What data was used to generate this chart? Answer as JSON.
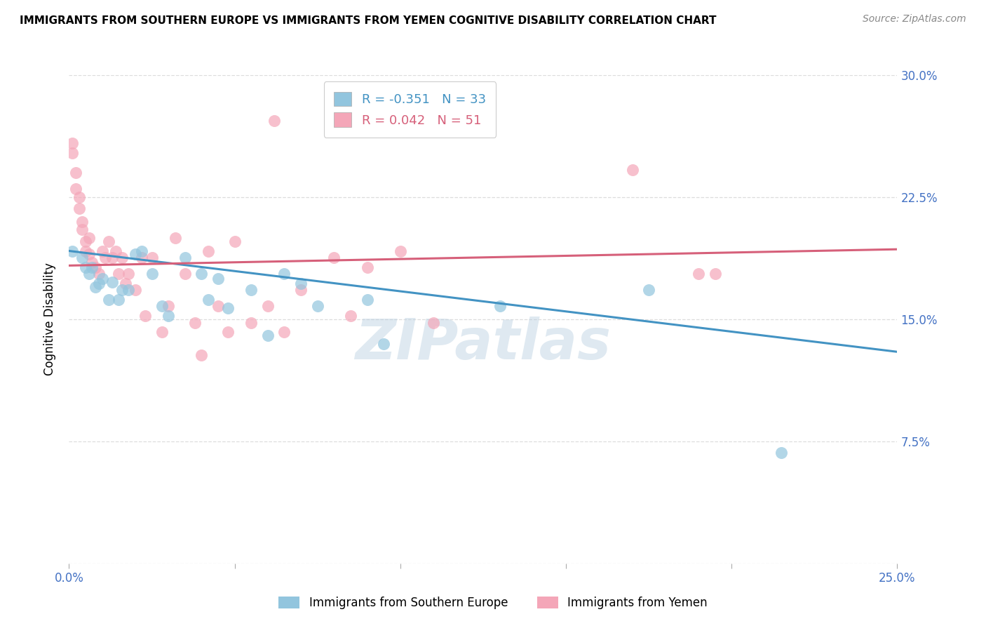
{
  "title": "IMMIGRANTS FROM SOUTHERN EUROPE VS IMMIGRANTS FROM YEMEN COGNITIVE DISABILITY CORRELATION CHART",
  "source": "Source: ZipAtlas.com",
  "ylabel": "Cognitive Disability",
  "xlim": [
    0.0,
    0.25
  ],
  "ylim": [
    0.0,
    0.3
  ],
  "xticks": [
    0.0,
    0.05,
    0.1,
    0.15,
    0.2,
    0.25
  ],
  "yticks": [
    0.0,
    0.075,
    0.15,
    0.225,
    0.3
  ],
  "xtick_labels": [
    "0.0%",
    "",
    "",
    "",
    "",
    "25.0%"
  ],
  "ytick_labels": [
    "",
    "7.5%",
    "15.0%",
    "22.5%",
    "30.0%"
  ],
  "legend1_label": "Immigrants from Southern Europe",
  "legend2_label": "Immigrants from Yemen",
  "R1": "-0.351",
  "N1": "33",
  "R2": "0.042",
  "N2": "51",
  "color_blue": "#92c5de",
  "color_pink": "#f4a6b8",
  "trendline_blue": "#4393c3",
  "trendline_pink": "#d6607a",
  "watermark": "ZIPatlas",
  "blue_points": [
    [
      0.001,
      0.192
    ],
    [
      0.004,
      0.188
    ],
    [
      0.005,
      0.182
    ],
    [
      0.006,
      0.178
    ],
    [
      0.007,
      0.182
    ],
    [
      0.008,
      0.17
    ],
    [
      0.009,
      0.172
    ],
    [
      0.01,
      0.175
    ],
    [
      0.012,
      0.162
    ],
    [
      0.013,
      0.173
    ],
    [
      0.015,
      0.162
    ],
    [
      0.016,
      0.168
    ],
    [
      0.018,
      0.168
    ],
    [
      0.02,
      0.19
    ],
    [
      0.022,
      0.192
    ],
    [
      0.025,
      0.178
    ],
    [
      0.028,
      0.158
    ],
    [
      0.03,
      0.152
    ],
    [
      0.035,
      0.188
    ],
    [
      0.04,
      0.178
    ],
    [
      0.042,
      0.162
    ],
    [
      0.045,
      0.175
    ],
    [
      0.048,
      0.157
    ],
    [
      0.055,
      0.168
    ],
    [
      0.06,
      0.14
    ],
    [
      0.065,
      0.178
    ],
    [
      0.07,
      0.172
    ],
    [
      0.075,
      0.158
    ],
    [
      0.09,
      0.162
    ],
    [
      0.095,
      0.135
    ],
    [
      0.13,
      0.158
    ],
    [
      0.175,
      0.168
    ],
    [
      0.215,
      0.068
    ]
  ],
  "pink_points": [
    [
      0.001,
      0.258
    ],
    [
      0.001,
      0.252
    ],
    [
      0.002,
      0.24
    ],
    [
      0.002,
      0.23
    ],
    [
      0.003,
      0.225
    ],
    [
      0.003,
      0.218
    ],
    [
      0.004,
      0.21
    ],
    [
      0.004,
      0.205
    ],
    [
      0.005,
      0.198
    ],
    [
      0.005,
      0.192
    ],
    [
      0.006,
      0.2
    ],
    [
      0.006,
      0.19
    ],
    [
      0.007,
      0.185
    ],
    [
      0.008,
      0.182
    ],
    [
      0.009,
      0.178
    ],
    [
      0.01,
      0.192
    ],
    [
      0.011,
      0.188
    ],
    [
      0.012,
      0.198
    ],
    [
      0.013,
      0.188
    ],
    [
      0.014,
      0.192
    ],
    [
      0.015,
      0.178
    ],
    [
      0.016,
      0.188
    ],
    [
      0.017,
      0.172
    ],
    [
      0.018,
      0.178
    ],
    [
      0.02,
      0.168
    ],
    [
      0.022,
      0.188
    ],
    [
      0.023,
      0.152
    ],
    [
      0.025,
      0.188
    ],
    [
      0.028,
      0.142
    ],
    [
      0.03,
      0.158
    ],
    [
      0.032,
      0.2
    ],
    [
      0.035,
      0.178
    ],
    [
      0.038,
      0.148
    ],
    [
      0.04,
      0.128
    ],
    [
      0.042,
      0.192
    ],
    [
      0.045,
      0.158
    ],
    [
      0.048,
      0.142
    ],
    [
      0.05,
      0.198
    ],
    [
      0.055,
      0.148
    ],
    [
      0.06,
      0.158
    ],
    [
      0.062,
      0.272
    ],
    [
      0.065,
      0.142
    ],
    [
      0.07,
      0.168
    ],
    [
      0.08,
      0.188
    ],
    [
      0.085,
      0.152
    ],
    [
      0.09,
      0.182
    ],
    [
      0.1,
      0.192
    ],
    [
      0.11,
      0.148
    ],
    [
      0.17,
      0.242
    ],
    [
      0.19,
      0.178
    ],
    [
      0.195,
      0.178
    ]
  ],
  "blue_trend_x": [
    0.0,
    0.25
  ],
  "blue_trend_y": [
    0.192,
    0.13
  ],
  "pink_trend_x": [
    0.0,
    0.25
  ],
  "pink_trend_y": [
    0.183,
    0.193
  ]
}
